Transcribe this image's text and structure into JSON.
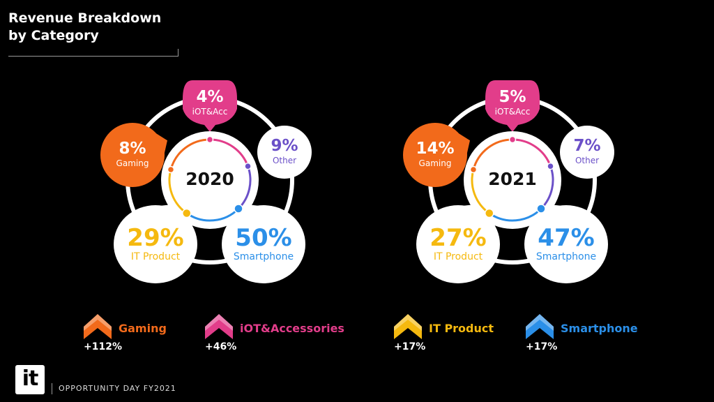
{
  "title": {
    "line1": "Revenue Breakdown",
    "line2": "by Category"
  },
  "colors": {
    "gaming": "#f26a1b",
    "iot": "#e23d8a",
    "it_product": "#f5b90f",
    "smartphone": "#2b8fe8",
    "other": "#6b50c8"
  },
  "chart_data": [
    {
      "type": "pie",
      "title": "2020",
      "slices": [
        {
          "key": "iot",
          "label": "iOT&Acc",
          "value": 4,
          "display": "4%"
        },
        {
          "key": "other",
          "label": "Other",
          "value": 9,
          "display": "9%"
        },
        {
          "key": "smartphone",
          "label": "Smartphone",
          "value": 50,
          "display": "50%"
        },
        {
          "key": "it_product",
          "label": "IT Product",
          "value": 29,
          "display": "29%"
        },
        {
          "key": "gaming",
          "label": "Gaming",
          "value": 8,
          "display": "8%"
        }
      ]
    },
    {
      "type": "pie",
      "title": "2021",
      "slices": [
        {
          "key": "iot",
          "label": "iOT&Acc",
          "value": 5,
          "display": "5%"
        },
        {
          "key": "other",
          "label": "Other",
          "value": 7,
          "display": "7%"
        },
        {
          "key": "smartphone",
          "label": "Smartphone",
          "value": 47,
          "display": "47%"
        },
        {
          "key": "it_product",
          "label": "IT Product",
          "value": 27,
          "display": "27%"
        },
        {
          "key": "gaming",
          "label": "Gaming",
          "value": 14,
          "display": "14%"
        }
      ]
    }
  ],
  "growth": [
    {
      "key": "gaming",
      "label": "Gaming",
      "value": "+112%"
    },
    {
      "key": "iot",
      "label": "iOT&Accessories",
      "value": "+46%"
    },
    {
      "key": "it_product",
      "label": "IT Product",
      "value": "+17%"
    },
    {
      "key": "smartphone",
      "label": "Smartphone",
      "value": "+17%"
    }
  ],
  "footer": {
    "logo": "it",
    "text": "OPPORTUNITY DAY FY2021"
  }
}
